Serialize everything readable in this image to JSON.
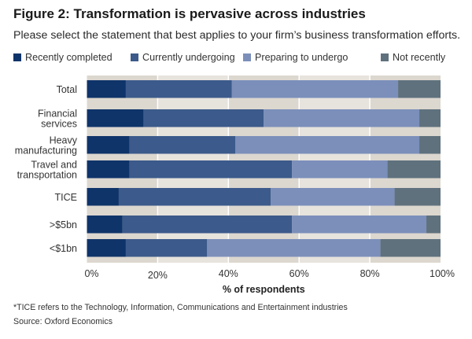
{
  "chart_data": {
    "type": "bar",
    "orientation": "horizontal",
    "stacked": true,
    "title": "Figure 2: Transformation is pervasive across industries",
    "subtitle": "Please select the statement that best applies to your firm’s business transformation efforts.",
    "xlabel": "% of respondents",
    "ylabel": "",
    "xlim": [
      0,
      100
    ],
    "xticks": [
      "0%",
      "20%",
      "40%",
      "60%",
      "80%",
      "100%"
    ],
    "xtick_values": [
      0,
      20,
      40,
      60,
      80,
      100
    ],
    "grid": true,
    "legend_position": "top",
    "categories": [
      "Total",
      "Financial services",
      "Heavy manufacturing",
      "Travel and transportation",
      "TICE",
      ">$5bn",
      "<$1bn"
    ],
    "category_lines": [
      [
        "Total"
      ],
      [
        "Financial",
        "services"
      ],
      [
        "Heavy",
        "manufacturing"
      ],
      [
        "Travel and",
        "transportation"
      ],
      [
        "TICE"
      ],
      [
        ">$5bn"
      ],
      [
        "<$1bn"
      ]
    ],
    "series": [
      {
        "name": "Recently completed",
        "color": "#0f346a",
        "values": [
          11,
          16,
          12,
          12,
          9,
          10,
          11
        ]
      },
      {
        "name": "Currently undergoing",
        "color": "#3c5a8b",
        "values": [
          30,
          34,
          30,
          46,
          43,
          48,
          23
        ]
      },
      {
        "name": "Preparing to undergo",
        "color": "#7b8fba",
        "values": [
          47,
          44,
          52,
          27,
          35,
          38,
          49
        ]
      },
      {
        "name": "Not recently",
        "color": "#5f717d",
        "values": [
          12,
          6,
          6,
          15,
          13,
          4,
          17
        ]
      }
    ]
  },
  "footnote": "*TICE refers to the Technology, Information, Communications and Entertainment industries",
  "source": "Source: Oxford Economics"
}
